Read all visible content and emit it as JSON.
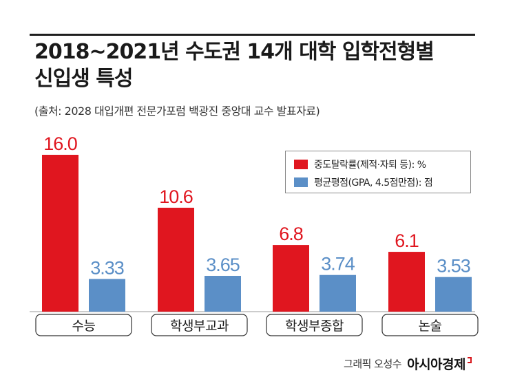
{
  "header": {
    "title_line1": "2018~2021년 수도권 14개 대학 입학전형별",
    "title_line2": "신입생 특성",
    "source": "(출처: 2028 대입개편 전문가포럼 백광진 중앙대 교수 발표자료)"
  },
  "legend": {
    "items": [
      {
        "label": "중도탈락률(제적·자퇴 등): %",
        "color": "#e0161f"
      },
      {
        "label": "평균평점(GPA, 4.5점만점): 점",
        "color": "#5b8fc7"
      }
    ]
  },
  "chart_data": {
    "type": "bar",
    "categories": [
      "수능",
      "학생부교과",
      "학생부종합",
      "논술"
    ],
    "series": [
      {
        "name": "중도탈락률(제적·자퇴 등): %",
        "values": [
          16.0,
          10.6,
          6.8,
          6.1
        ],
        "labels": [
          "16.0",
          "10.6",
          "6.8",
          "6.1"
        ],
        "color": "#e0161f"
      },
      {
        "name": "평균평점(GPA, 4.5점만점): 점",
        "values": [
          3.33,
          3.65,
          3.74,
          3.53
        ],
        "labels": [
          "3.33",
          "3.65",
          "3.74",
          "3.53"
        ],
        "color": "#5b8fc7"
      }
    ],
    "grid": false,
    "legend_position": "top-right"
  },
  "footer": {
    "credit": "그래픽 오성수",
    "brand": "아시아경제"
  }
}
